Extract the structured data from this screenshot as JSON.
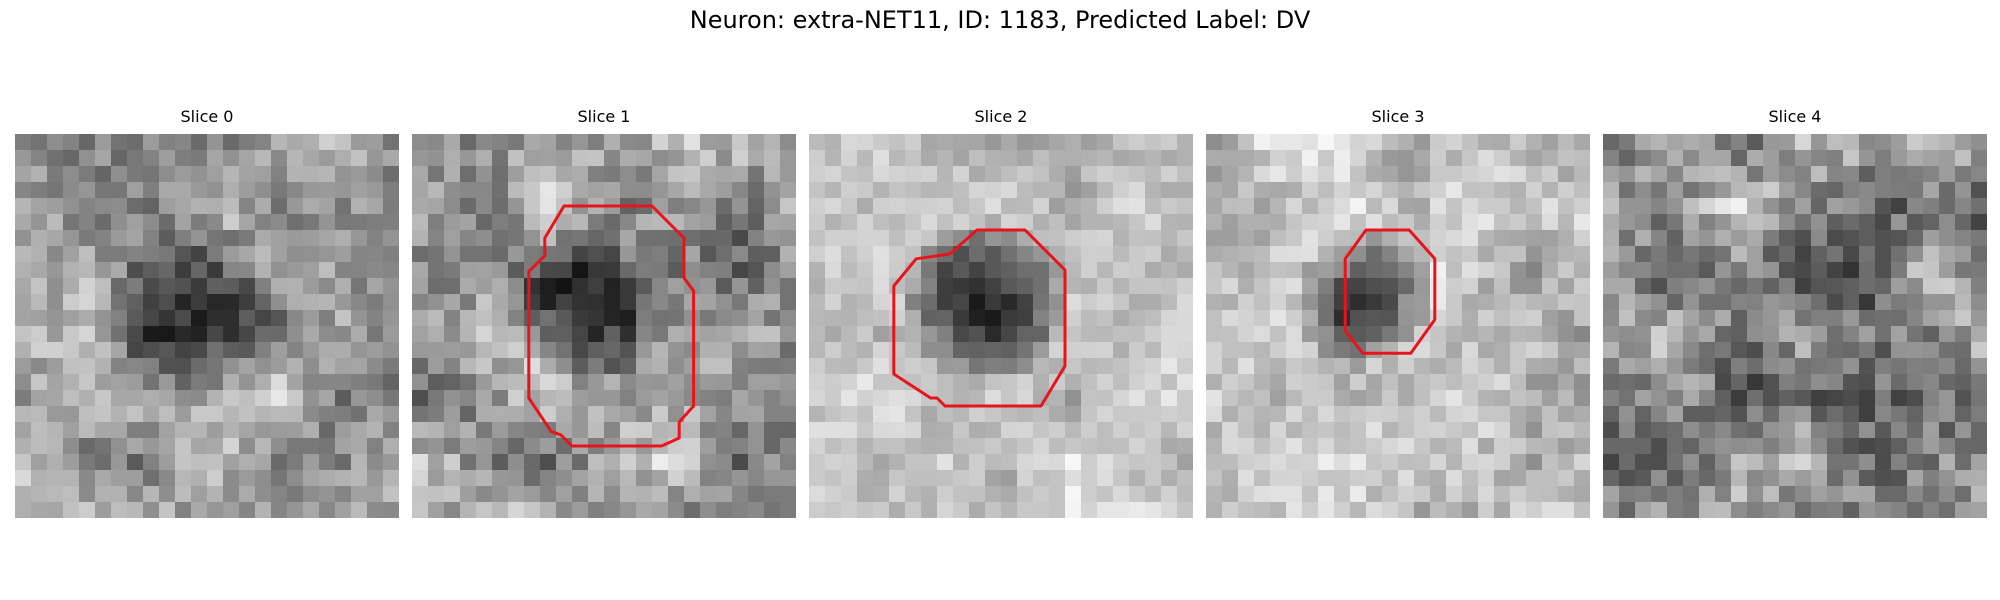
{
  "figure": {
    "title": "Neuron: extra-NET11, ID: 1183, Predicted Label: DV"
  },
  "colors": {
    "contour": "#e8141c",
    "background": "#ffffff"
  },
  "panels": [
    {
      "title": "Slice 0",
      "has_contour": false
    },
    {
      "title": "Slice 1",
      "has_contour": true
    },
    {
      "title": "Slice 2",
      "has_contour": true
    },
    {
      "title": "Slice 3",
      "has_contour": true
    },
    {
      "title": "Slice 4",
      "has_contour": false
    }
  ]
}
